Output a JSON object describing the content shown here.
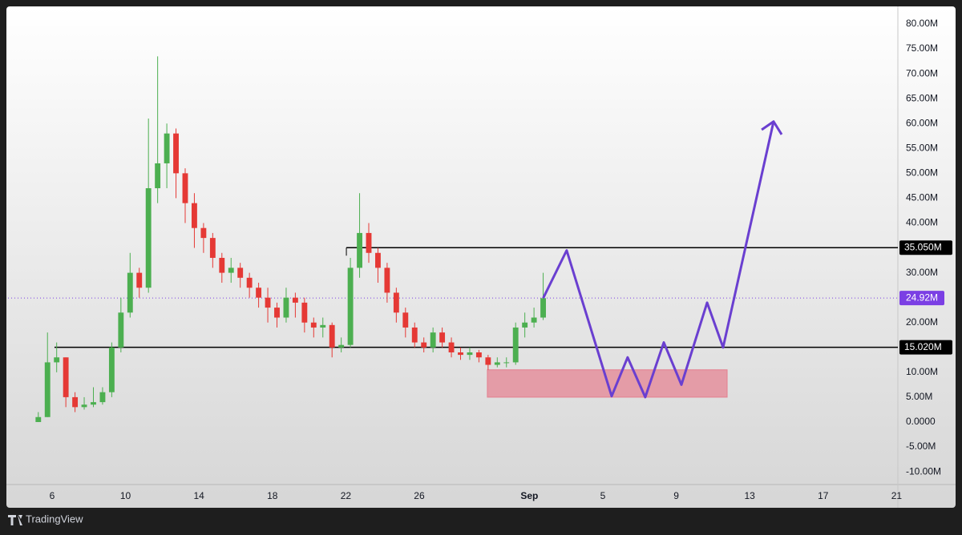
{
  "chart_data": {
    "type": "candlestick",
    "xlim": [
      -2.4,
      46.07
    ],
    "ylim": [
      -12.56,
      83.54
    ],
    "xticks": [
      {
        "value": 0,
        "label": "6"
      },
      {
        "value": 4,
        "label": "10"
      },
      {
        "value": 8,
        "label": "14"
      },
      {
        "value": 12,
        "label": "18"
      },
      {
        "value": 16,
        "label": "22"
      },
      {
        "value": 20,
        "label": "26"
      },
      {
        "value": 26,
        "label": "Sep"
      },
      {
        "value": 30,
        "label": "5"
      },
      {
        "value": 34,
        "label": "9"
      },
      {
        "value": 38,
        "label": "13"
      },
      {
        "value": 42,
        "label": "17"
      },
      {
        "value": 46,
        "label": "21"
      }
    ],
    "yticks": [
      {
        "value": 80,
        "label": "80.00M"
      },
      {
        "value": 75,
        "label": "75.00M"
      },
      {
        "value": 70,
        "label": "70.00M"
      },
      {
        "value": 65,
        "label": "65.00M"
      },
      {
        "value": 60,
        "label": "60.00M"
      },
      {
        "value": 55,
        "label": "55.00M"
      },
      {
        "value": 50,
        "label": "50.00M"
      },
      {
        "value": 45,
        "label": "45.00M"
      },
      {
        "value": 40,
        "label": "40.00M"
      },
      {
        "value": 30,
        "label": "30.00M"
      },
      {
        "value": 20,
        "label": "20.00M"
      },
      {
        "value": 10,
        "label": "10.00M"
      },
      {
        "value": 5,
        "label": "5.00M"
      },
      {
        "value": 0,
        "label": "0.0000"
      },
      {
        "value": -5,
        "label": "-5.00M"
      },
      {
        "value": -10,
        "label": "-10.00M"
      }
    ],
    "up_color": "#4caf50",
    "down_color": "#e53935",
    "x": [
      -0.75,
      -0.25,
      0.25,
      0.75,
      1.25,
      1.75,
      2.25,
      2.75,
      3.25,
      3.75,
      4.25,
      4.75,
      5.25,
      5.75,
      6.25,
      6.75,
      7.25,
      7.75,
      8.25,
      8.75,
      9.25,
      9.75,
      10.25,
      10.75,
      11.25,
      11.75,
      12.25,
      12.75,
      13.25,
      13.75,
      14.25,
      14.75,
      15.25,
      15.75,
      16.25,
      16.75,
      17.25,
      17.75,
      18.25,
      18.75,
      19.25,
      19.75,
      20.25,
      20.75,
      21.25,
      21.75,
      22.25,
      22.75,
      23.25,
      23.75,
      24.25,
      24.75,
      25.25,
      25.75,
      26.25,
      26.75
    ],
    "open": [
      0,
      1,
      12,
      13,
      5,
      3,
      3.5,
      4,
      6,
      15,
      22,
      30,
      27,
      47,
      52,
      58,
      50,
      44,
      39,
      37,
      33,
      30,
      31,
      29,
      27,
      25,
      23,
      21,
      25,
      24,
      20,
      19,
      19.5,
      15,
      15.5,
      31,
      38,
      34,
      31,
      26,
      22,
      19,
      16,
      15,
      18,
      16,
      14,
      13.5,
      14,
      13,
      11.5,
      12,
      12,
      19,
      20,
      21
    ],
    "high": [
      2,
      18,
      16,
      13,
      6,
      5,
      7,
      7,
      16,
      25,
      34,
      31,
      61,
      73.5,
      60,
      59,
      51,
      46,
      40,
      38,
      34,
      33,
      32,
      30,
      28,
      27,
      24,
      27,
      26,
      25,
      21,
      21,
      20,
      17,
      33,
      46,
      40,
      35,
      32,
      27,
      23,
      20,
      17,
      19,
      19,
      17,
      15,
      15,
      14.5,
      13.5,
      13,
      13,
      20,
      22,
      23,
      30
    ],
    "low": [
      0,
      1,
      10,
      3,
      2,
      2.5,
      3,
      3.5,
      5,
      14,
      21,
      25,
      26,
      44,
      47,
      45,
      40,
      35,
      34,
      31,
      28,
      28,
      27,
      25,
      23,
      20,
      19,
      20,
      21,
      18,
      17,
      17,
      13,
      14,
      15,
      29,
      32,
      28,
      24,
      20,
      17,
      15,
      14,
      14,
      15,
      13,
      12.5,
      12.5,
      12,
      10.5,
      11,
      11,
      11.5,
      17,
      19,
      20.5
    ],
    "close": [
      1,
      12,
      13,
      5,
      3,
      3.5,
      4,
      6,
      15,
      22,
      30,
      27,
      47,
      52,
      58,
      50,
      44,
      39,
      37,
      33,
      30,
      31,
      29,
      27,
      25,
      23,
      21,
      25,
      24,
      20,
      19,
      19.5,
      15,
      15.5,
      31,
      38,
      34,
      31,
      26,
      22,
      19,
      16,
      15,
      18,
      16,
      14,
      13.5,
      14,
      13,
      11.5,
      12,
      12,
      19,
      20,
      21,
      24.9
    ],
    "levels": [
      {
        "value": 35.05,
        "label": "35.050M",
        "x_start": 16.03
      },
      {
        "value": 15.02,
        "label": "15.020M",
        "x_start": 0.13
      }
    ],
    "current_price": {
      "value": 24.92,
      "label": "24.92M",
      "color": "#7b3fe4"
    },
    "zone": {
      "x": [
        23.71,
        36.77
      ],
      "y": [
        5,
        10.5
      ],
      "color": "#e57f8f"
    },
    "projection": {
      "color": "#6a3fd0",
      "x": [
        26.75,
        28.03,
        30.48,
        31.35,
        32.31,
        33.32,
        34.28,
        35.68,
        36.55,
        39.3
      ],
      "y": [
        24.9,
        34.5,
        5.2,
        13,
        5,
        16,
        7.5,
        24,
        15,
        60.4
      ],
      "arrow_x": [
        38.65,
        39.74
      ],
      "arrow_y": [
        58.75,
        57.8
      ]
    },
    "watermark": "TradingView"
  }
}
